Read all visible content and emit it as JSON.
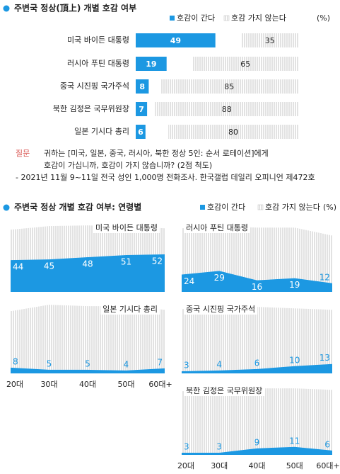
{
  "chart_data": [
    {
      "type": "bar",
      "title": "주변국 정상(頂上) 개별 호감 여부",
      "unit": "(%)",
      "categories": [
        "미국 바이든 대통령",
        "러시아 푸틴 대통령",
        "중국 시진핑 국가주석",
        "북한 김정은 국무위원장",
        "일본 기시다 총리"
      ],
      "series": [
        {
          "name": "호감이 간다",
          "color": "#1c98e2",
          "values": [
            49,
            19,
            8,
            7,
            6
          ]
        },
        {
          "name": "호감 가지 않는다",
          "color": "#c8c8c8",
          "values": [
            35,
            65,
            85,
            88,
            80
          ]
        }
      ],
      "xlim": [
        0,
        100
      ]
    },
    {
      "type": "area",
      "categories": [
        "20대",
        "30대",
        "40대",
        "50대",
        "60대+"
      ],
      "ylim": [
        0,
        100
      ],
      "series": [
        {
          "name": "호감이 간다",
          "color": "#1c98e2",
          "values": [
            44,
            45,
            48,
            51,
            52
          ]
        },
        {
          "name": "호감 가지 않는다",
          "color": "#c8c8c8",
          "values": [
            42,
            46,
            44,
            40,
            36
          ]
        }
      ]
    },
    {
      "type": "area",
      "categories": [
        "20대",
        "30대",
        "40대",
        "50대",
        "60대+"
      ],
      "ylim": [
        0,
        100
      ],
      "series": [
        {
          "name": "호감이 간다",
          "color": "#1c98e2",
          "values": [
            24,
            29,
            16,
            19,
            12
          ]
        },
        {
          "name": "호감 가지 않는다",
          "color": "#c8c8c8",
          "values": [
            64,
            62,
            73,
            70,
            66
          ]
        }
      ]
    },
    {
      "type": "area",
      "categories": [
        "20대",
        "30대",
        "40대",
        "50대",
        "60대+"
      ],
      "ylim": [
        0,
        100
      ],
      "series": [
        {
          "name": "호감이 간다",
          "color": "#1c98e2",
          "values": [
            8,
            5,
            5,
            4,
            7
          ]
        },
        {
          "name": "호감 가지 않는다",
          "color": "#c8c8c8",
          "values": [
            78,
            90,
            88,
            89,
            81
          ]
        }
      ]
    },
    {
      "type": "area",
      "categories": [
        "20대",
        "30대",
        "40대",
        "50대",
        "60대+"
      ],
      "ylim": [
        0,
        100
      ],
      "series": [
        {
          "name": "호감이 간다",
          "color": "#1c98e2",
          "values": [
            3,
            4,
            6,
            10,
            13
          ]
        },
        {
          "name": "호감 가지 않는다",
          "color": "#c8c8c8",
          "values": [
            86,
            89,
            86,
            80,
            75
          ]
        }
      ]
    },
    {
      "type": "area",
      "categories": [
        "20대",
        "30대",
        "40대",
        "50대",
        "60대+"
      ],
      "ylim": [
        0,
        100
      ],
      "series": [
        {
          "name": "호감이 간다",
          "color": "#1c98e2",
          "values": [
            3,
            3,
            9,
            11,
            6
          ]
        },
        {
          "name": "호감 가지 않는다",
          "color": "#c8c8c8",
          "values": [
            85,
            89,
            83,
            81,
            84
          ]
        }
      ]
    }
  ],
  "section2": {
    "title": "주변국 정상 개별 호감 여부: 연령별",
    "unit": "(%)"
  },
  "notes": {
    "label": "질문",
    "question": [
      "귀하는 [미국, 일본, 중국, 러시아, 북한 정상 5인: 순서 로테이션]에게",
      "호감이 가십니까, 호감이 가지 않습니까? (2점 척도)"
    ],
    "source": "- 2021년 11월 9~11일 전국 성인 1,000명 전화조사. 한국갤럽 데일리 오피니언 제472호"
  }
}
